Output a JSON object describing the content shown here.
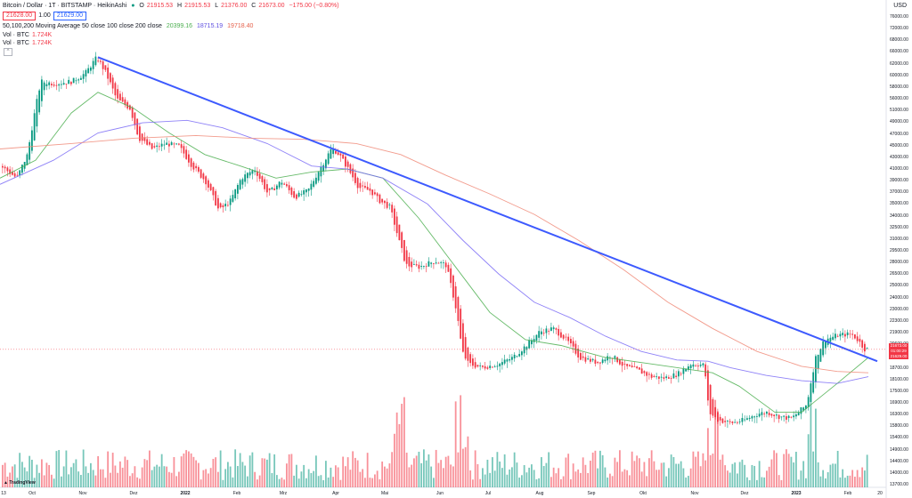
{
  "header": {
    "symbol": "Bitcoin / Dollar · 1T · BITSTAMP · HeikinAshi",
    "o_label": "O",
    "o_value": "21915.53",
    "h_label": "H",
    "h_value": "21915.53",
    "l_label": "L",
    "l_value": "21376.00",
    "c_label": "C",
    "c_value": "21673.00",
    "change": "−175.00 (−0.80%)",
    "bid": "21628.00",
    "spread": "1.00",
    "ask": "21629.00",
    "ma_label": "50,100,200 Moving Average 50 close 100 close 200 close",
    "ma50_value": "20399.16",
    "ma100_value": "18715.19",
    "ma200_value": "19718.40",
    "vol1_label": "Vol · BTC",
    "vol1_value": "1.724K",
    "vol2_label": "Vol · BTC",
    "vol2_value": "1.724K",
    "collapse": "^"
  },
  "currency": "USD",
  "logo_text": "TradingView",
  "price_tags": [
    "21673.00",
    "01:00:29",
    "21629.00"
  ],
  "colors": {
    "up": "#089981",
    "down": "#f23645",
    "ma50": "#4caf50",
    "ma100": "#7b6cf6",
    "ma200": "#f08a78",
    "trendline": "#3d5afe"
  },
  "chart_data": {
    "type": "candlestick",
    "style": "HeikinAshi",
    "timeframe": "1 day",
    "y_ticks": [
      "76000.00",
      "72000.00",
      "68000.00",
      "66000.00",
      "62000.00",
      "60000.00",
      "58000.00",
      "56000.00",
      "51000.00",
      "49000.00",
      "47000.00",
      "45000.00",
      "43000.00",
      "41000.00",
      "39000.00",
      "37000.00",
      "35000.00",
      "34000.00",
      "32500.00",
      "31000.00",
      "29500.00",
      "28000.00",
      "26500.00",
      "25000.00",
      "24000.00",
      "23000.00",
      "22300.00",
      "21900.00",
      "20600.00",
      "19700.00",
      "18700.00",
      "18100.00",
      "17500.00",
      "16900.00",
      "16300.00",
      "15800.00",
      "15400.00",
      "14900.00",
      "14400.00",
      "14000.00",
      "13700.00"
    ],
    "x_ticks": [
      {
        "label": "Oct",
        "bold": false
      },
      {
        "label": "Nov",
        "bold": false
      },
      {
        "label": "Dez",
        "bold": false
      },
      {
        "label": "2022",
        "bold": true
      },
      {
        "label": "Feb",
        "bold": false
      },
      {
        "label": "Mrz",
        "bold": false
      },
      {
        "label": "Apr",
        "bold": false
      },
      {
        "label": "Mai",
        "bold": false
      },
      {
        "label": "Jun",
        "bold": false
      },
      {
        "label": "Jul",
        "bold": false
      },
      {
        "label": "Aug",
        "bold": false
      },
      {
        "label": "Sep",
        "bold": false
      },
      {
        "label": "Okt",
        "bold": false
      },
      {
        "label": "Nov",
        "bold": false
      },
      {
        "label": "Dez",
        "bold": false
      },
      {
        "label": "2023",
        "bold": true
      },
      {
        "label": "Feb",
        "bold": false
      },
      {
        "label": "20",
        "bold": false
      }
    ],
    "first_x_label": "13",
    "price_path": [
      [
        0,
        44000
      ],
      [
        18,
        42000
      ],
      [
        30,
        46000
      ],
      [
        45,
        61000
      ],
      [
        60,
        60500
      ],
      [
        80,
        61000
      ],
      [
        95,
        63000
      ],
      [
        108,
        67000
      ],
      [
        118,
        63000
      ],
      [
        130,
        57000
      ],
      [
        145,
        55000
      ],
      [
        155,
        49000
      ],
      [
        170,
        47000
      ],
      [
        185,
        48000
      ],
      [
        200,
        47500
      ],
      [
        215,
        44000
      ],
      [
        230,
        41500
      ],
      [
        245,
        37000
      ],
      [
        258,
        38500
      ],
      [
        270,
        42000
      ],
      [
        285,
        43500
      ],
      [
        300,
        39500
      ],
      [
        315,
        41500
      ],
      [
        330,
        39000
      ],
      [
        345,
        40000
      ],
      [
        360,
        44000
      ],
      [
        372,
        47200
      ],
      [
        380,
        46000
      ],
      [
        392,
        43000
      ],
      [
        402,
        40500
      ],
      [
        415,
        40000
      ],
      [
        425,
        38500
      ],
      [
        437,
        37500
      ],
      [
        447,
        33000
      ],
      [
        455,
        30000
      ],
      [
        470,
        29800
      ],
      [
        488,
        30500
      ],
      [
        500,
        30000
      ],
      [
        512,
        25000
      ],
      [
        518,
        21500
      ],
      [
        525,
        20500
      ],
      [
        540,
        20200
      ],
      [
        560,
        20500
      ],
      [
        575,
        21000
      ],
      [
        590,
        22000
      ],
      [
        605,
        23200
      ],
      [
        620,
        23500
      ],
      [
        635,
        22500
      ],
      [
        650,
        21000
      ],
      [
        670,
        20600
      ],
      [
        685,
        21200
      ],
      [
        700,
        20300
      ],
      [
        715,
        20000
      ],
      [
        730,
        19500
      ],
      [
        745,
        19400
      ],
      [
        760,
        19700
      ],
      [
        775,
        20500
      ],
      [
        790,
        20400
      ],
      [
        795,
        17000
      ],
      [
        805,
        16500
      ],
      [
        820,
        16300
      ],
      [
        835,
        16500
      ],
      [
        850,
        16900
      ],
      [
        860,
        17000
      ],
      [
        875,
        16700
      ],
      [
        888,
        16600
      ],
      [
        905,
        17500
      ],
      [
        915,
        21000
      ],
      [
        925,
        22500
      ],
      [
        940,
        22900
      ],
      [
        955,
        23000
      ],
      [
        962,
        22500
      ],
      [
        970,
        21700
      ]
    ],
    "series": [
      {
        "name": "MA 50",
        "values": [
          [
            0,
            42000
          ],
          [
            40,
            45000
          ],
          [
            80,
            54000
          ],
          [
            110,
            58500
          ],
          [
            150,
            55000
          ],
          [
            190,
            50000
          ],
          [
            230,
            46000
          ],
          [
            270,
            44000
          ],
          [
            310,
            42000
          ],
          [
            350,
            43000
          ],
          [
            390,
            43500
          ],
          [
            430,
            42000
          ],
          [
            470,
            36000
          ],
          [
            510,
            30000
          ],
          [
            550,
            25000
          ],
          [
            590,
            22500
          ],
          [
            630,
            22000
          ],
          [
            680,
            21000
          ],
          [
            730,
            20500
          ],
          [
            780,
            20000
          ],
          [
            800,
            19800
          ],
          [
            830,
            18800
          ],
          [
            870,
            17000
          ],
          [
            900,
            17000
          ],
          [
            940,
            19000
          ],
          [
            975,
            21000
          ]
        ]
      },
      {
        "name": "MA 100",
        "values": [
          [
            0,
            41000
          ],
          [
            60,
            45000
          ],
          [
            110,
            50000
          ],
          [
            160,
            52000
          ],
          [
            210,
            52500
          ],
          [
            250,
            51000
          ],
          [
            300,
            48000
          ],
          [
            350,
            44000
          ],
          [
            390,
            43500
          ],
          [
            430,
            42000
          ],
          [
            480,
            38000
          ],
          [
            520,
            33000
          ],
          [
            560,
            29000
          ],
          [
            600,
            26000
          ],
          [
            640,
            24500
          ],
          [
            680,
            22800
          ],
          [
            720,
            21500
          ],
          [
            760,
            20800
          ],
          [
            795,
            20700
          ],
          [
            820,
            20200
          ],
          [
            860,
            19600
          ],
          [
            900,
            19200
          ],
          [
            940,
            19000
          ],
          [
            975,
            19500
          ]
        ]
      },
      {
        "name": "MA 200",
        "values": [
          [
            0,
            47000
          ],
          [
            80,
            48000
          ],
          [
            150,
            49000
          ],
          [
            220,
            49500
          ],
          [
            280,
            49000
          ],
          [
            340,
            48800
          ],
          [
            400,
            48000
          ],
          [
            450,
            46000
          ],
          [
            500,
            42500
          ],
          [
            550,
            39500
          ],
          [
            600,
            36500
          ],
          [
            650,
            33000
          ],
          [
            700,
            29500
          ],
          [
            750,
            26000
          ],
          [
            800,
            23500
          ],
          [
            850,
            21500
          ],
          [
            900,
            20300
          ],
          [
            940,
            19900
          ],
          [
            975,
            19800
          ]
        ]
      }
    ],
    "trendline": {
      "x0": 110,
      "y0": 67000,
      "x1": 985,
      "y1": 20700
    },
    "volume_note": "histogram bars colored by candle direction"
  }
}
